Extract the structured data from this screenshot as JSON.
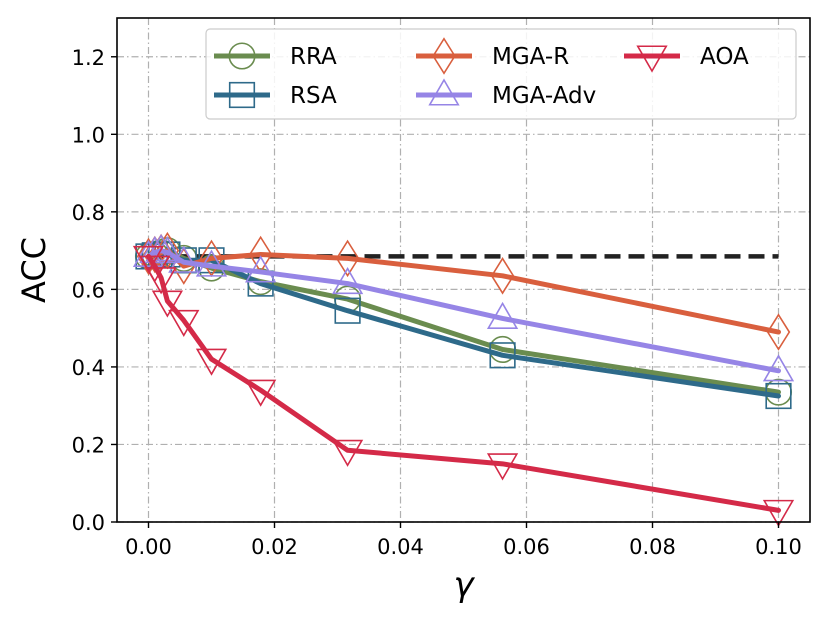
{
  "chart_data": {
    "type": "line",
    "xlabel": "γ",
    "ylabel": "ACC",
    "xlim": [
      -0.005,
      0.105
    ],
    "ylim": [
      0.0,
      1.3
    ],
    "xticks": [
      0.0,
      0.02,
      0.04,
      0.06,
      0.08,
      0.1
    ],
    "xtick_labels": [
      "0.00",
      "0.02",
      "0.04",
      "0.06",
      "0.08",
      "0.10"
    ],
    "yticks": [
      0.0,
      0.2,
      0.4,
      0.6,
      0.8,
      1.0,
      1.2
    ],
    "ytick_labels": [
      "0.0",
      "0.2",
      "0.4",
      "0.6",
      "0.8",
      "1.0",
      "1.2"
    ],
    "grid": true,
    "legend_position": "top",
    "reference_line": {
      "y": 0.685,
      "x": [
        0.0,
        0.1
      ],
      "color": "#222222",
      "style": "dashed"
    },
    "x": [
      0.0,
      0.001,
      0.002,
      0.003,
      0.0056,
      0.01,
      0.0178,
      0.0316,
      0.0562,
      0.1
    ],
    "series": [
      {
        "name": "RRA",
        "color": "#6a8c4f",
        "marker": "circle",
        "values": [
          0.685,
          0.69,
          0.695,
          0.7,
          0.68,
          0.655,
          0.62,
          0.575,
          0.445,
          0.335
        ]
      },
      {
        "name": "RSA",
        "color": "#2e6a8a",
        "marker": "square",
        "values": [
          0.685,
          0.688,
          0.69,
          0.69,
          0.675,
          0.675,
          0.615,
          0.545,
          0.43,
          0.325
        ]
      },
      {
        "name": "MGA-R",
        "color": "#d95f3e",
        "marker": "diamond",
        "values": [
          0.685,
          0.69,
          0.695,
          0.7,
          0.66,
          0.68,
          0.69,
          0.68,
          0.635,
          0.49
        ]
      },
      {
        "name": "MGA-Adv",
        "color": "#9685e6",
        "marker": "triangle-up",
        "values": [
          0.685,
          0.695,
          0.7,
          0.695,
          0.67,
          0.66,
          0.645,
          0.615,
          0.525,
          0.39
        ]
      },
      {
        "name": "AOA",
        "color": "#d42a48",
        "marker": "triangle-down",
        "values": [
          0.685,
          0.66,
          0.63,
          0.57,
          0.52,
          0.42,
          0.34,
          0.185,
          0.15,
          0.03
        ]
      }
    ]
  }
}
